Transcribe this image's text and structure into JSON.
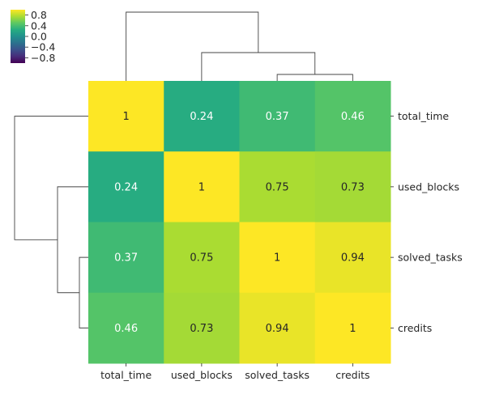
{
  "chart_data": {
    "type": "heatmap",
    "variant": "clustermap",
    "title": "",
    "xlabel": "",
    "ylabel": "",
    "colormap": "viridis",
    "vmin": -1,
    "vmax": 1,
    "row_labels": [
      "total_time",
      "used_blocks",
      "solved_tasks",
      "credits"
    ],
    "col_labels": [
      "total_time",
      "used_blocks",
      "solved_tasks",
      "credits"
    ],
    "values": [
      [
        1,
        0.24,
        0.37,
        0.46
      ],
      [
        0.24,
        1,
        0.75,
        0.73
      ],
      [
        0.37,
        0.75,
        1,
        0.94
      ],
      [
        0.46,
        0.73,
        0.94,
        1
      ]
    ],
    "cell_text": [
      [
        "1",
        "0.24",
        "0.37",
        "0.46"
      ],
      [
        "0.24",
        "1",
        "0.75",
        "0.73"
      ],
      [
        "0.37",
        "0.75",
        "1",
        "0.94"
      ],
      [
        "0.46",
        "0.73",
        "0.94",
        "1"
      ]
    ],
    "colorbar": {
      "ticks": [
        0.8,
        0.4,
        0.0,
        -0.4,
        -0.8
      ],
      "tick_labels": [
        "0.8",
        "0.4",
        "0.0",
        "−0.4",
        "−0.8"
      ],
      "placement": "top-left"
    },
    "row_dendrogram": {
      "placement": "left"
    },
    "col_dendrogram": {
      "placement": "top"
    }
  }
}
